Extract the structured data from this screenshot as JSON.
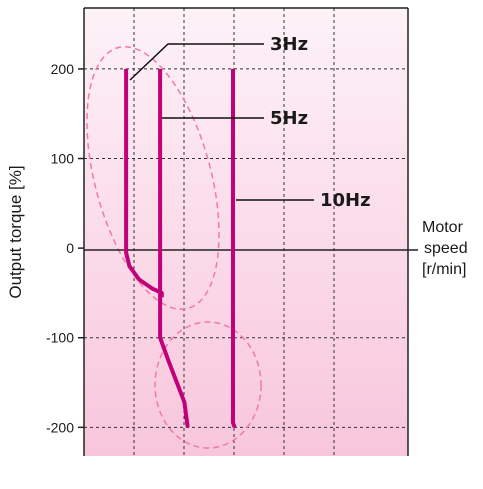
{
  "chart_data": {
    "type": "line",
    "ylabel": "Output torque [%]",
    "xlabel": [
      "Motor",
      "speed",
      "[r/min]"
    ],
    "y_ticks": [
      "200",
      "100",
      "0",
      "-100",
      "-200"
    ],
    "y_tick_values": [
      200,
      100,
      0,
      -100,
      -200
    ],
    "ylim": [
      -232,
      268
    ],
    "xlim": [
      0,
      100
    ],
    "grid": true,
    "series": [
      {
        "name": "3Hz",
        "color": "#c2007a",
        "points": [
          [
            13,
            200
          ],
          [
            13,
            -5
          ],
          [
            14,
            -20
          ],
          [
            17,
            -35
          ],
          [
            21,
            -45
          ],
          [
            24,
            -50
          ],
          [
            24,
            -55
          ]
        ]
      },
      {
        "name": "5Hz",
        "color": "#c2007a",
        "points": [
          [
            23.5,
            200
          ],
          [
            23.5,
            -100
          ],
          [
            26,
            -125
          ],
          [
            31,
            -172
          ],
          [
            32,
            -200
          ]
        ]
      },
      {
        "name": "10Hz",
        "color": "#c2007a",
        "points": [
          [
            46,
            200
          ],
          [
            46,
            -195
          ],
          [
            46.5,
            -200
          ]
        ]
      }
    ],
    "background_gradient": [
      "#fdf2f7",
      "#f8c6dc"
    ],
    "highlight_color": "#f07aa8"
  }
}
